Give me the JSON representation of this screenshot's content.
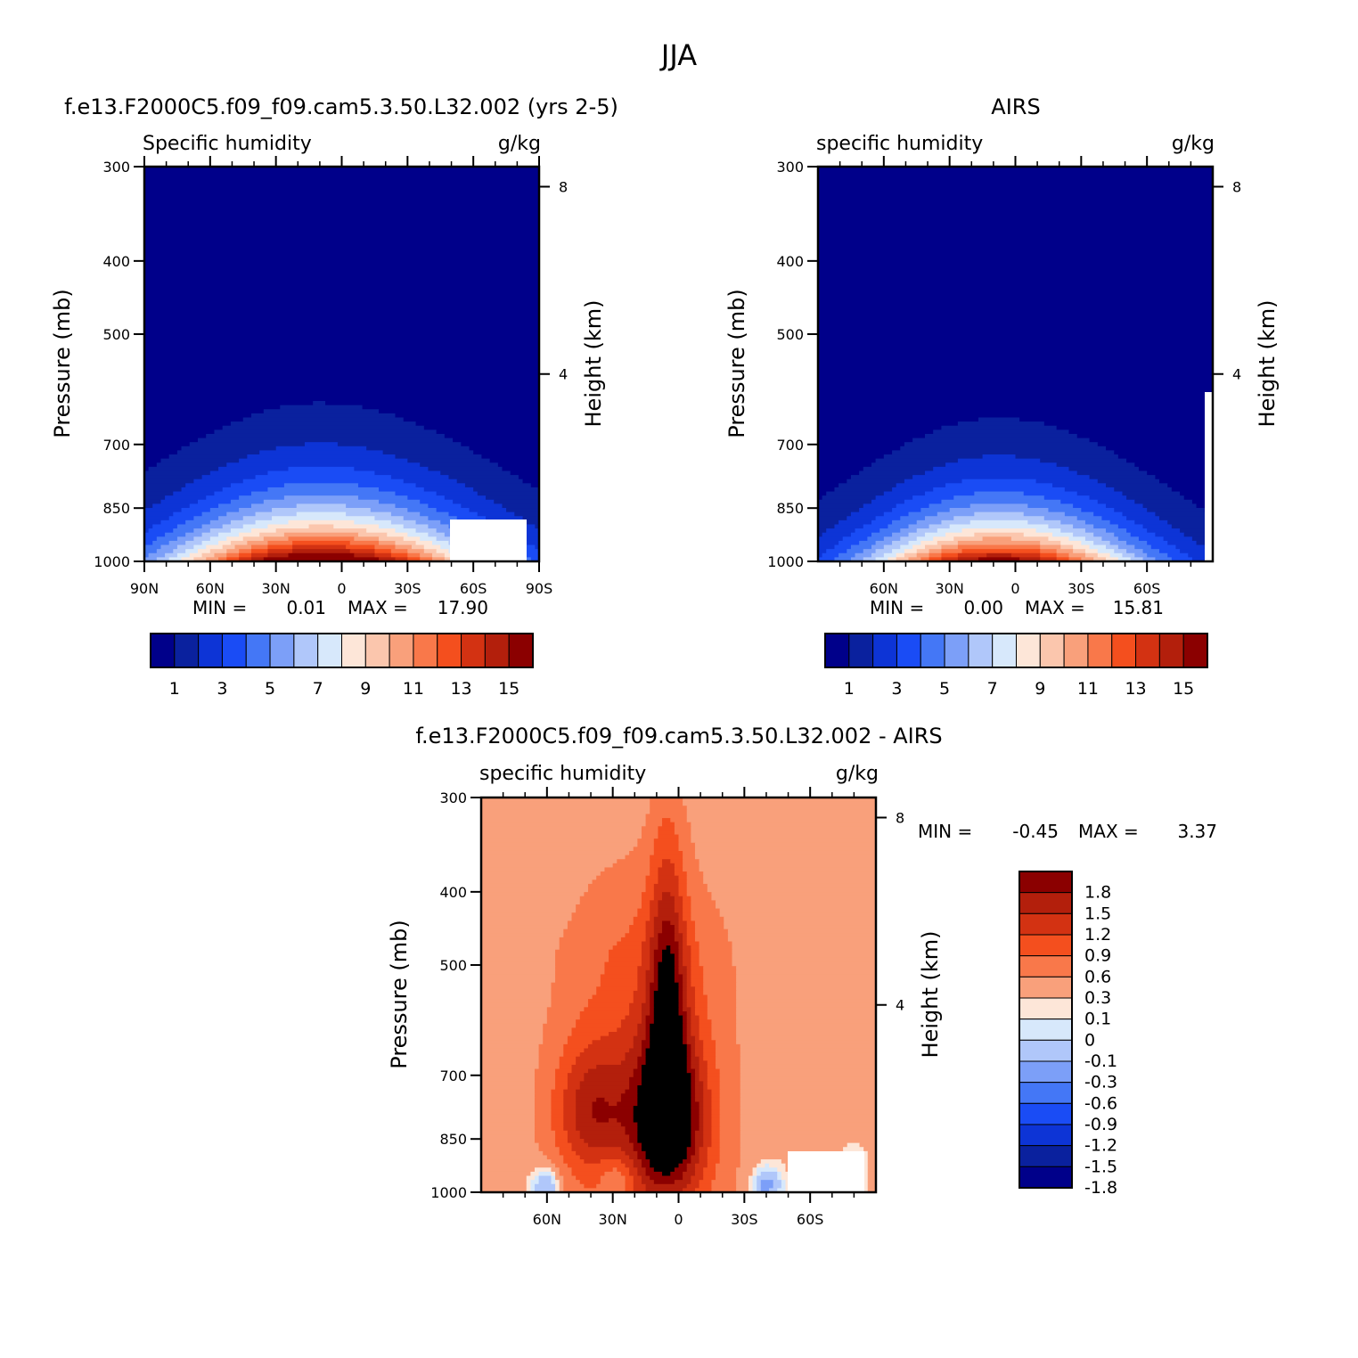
{
  "figure_title": "JJA",
  "colors": {
    "seq": [
      "#00008a",
      "#0a219e",
      "#0d34d6",
      "#1a4cf5",
      "#4477f6",
      "#7c9ff8",
      "#b0c7fa",
      "#d7e8fb",
      "#fde6d8",
      "#fbc6ad",
      "#f9a07b",
      "#f9784a",
      "#f44f1e",
      "#d33212",
      "#b31f0c",
      "#8b0000"
    ],
    "diff": [
      "#00008a",
      "#0a219e",
      "#0d34d6",
      "#1a4cf5",
      "#4477f6",
      "#7c9ff8",
      "#b0c7fa",
      "#d7e8fb",
      "#fde6d8",
      "#f9a07b",
      "#f9784a",
      "#f44f1e",
      "#d33212",
      "#b31f0c",
      "#8b0000"
    ]
  },
  "panels": [
    {
      "title": "f.e13.F2000C5.f09_f09.cam5.3.50.L32.002 (yrs 2-5)",
      "left_label": "Specific humidity",
      "right_label": "g/kg",
      "ylabel": "Pressure (mb)",
      "y2label": "Height (km)",
      "min_label": "MIN =",
      "min_value": "0.01",
      "max_label": "MAX =",
      "max_value": "17.90",
      "colorbar_labels": [
        "1",
        "3",
        "5",
        "7",
        "9",
        "11",
        "13",
        "15"
      ]
    },
    {
      "title": "AIRS",
      "left_label": "specific humidity",
      "right_label": "g/kg",
      "ylabel": "Pressure (mb)",
      "y2label": "Height (km)",
      "min_label": "MIN =",
      "min_value": "0.00",
      "max_label": "MAX =",
      "max_value": "15.81",
      "colorbar_labels": [
        "1",
        "3",
        "5",
        "7",
        "9",
        "11",
        "13",
        "15"
      ]
    },
    {
      "title": "f.e13.F2000C5.f09_f09.cam5.3.50.L32.002 - AIRS",
      "left_label": "specific humidity",
      "right_label": "g/kg",
      "ylabel": "Pressure (mb)",
      "y2label": "Height (km)",
      "min_label": "MIN =",
      "min_value": "-0.45",
      "max_label": "MAX =",
      "max_value": "3.37",
      "colorbar_labels": [
        "1.8",
        "1.5",
        "1.2",
        "0.9",
        "0.6",
        "0.3",
        "0.1",
        "0",
        "-0.1",
        "-0.3",
        "-0.6",
        "-0.9",
        "-1.2",
        "-1.5",
        "-1.8"
      ]
    }
  ],
  "chart_data": [
    {
      "type": "heatmap",
      "title": "f.e13.F2000C5.f09_f09.cam5.3.50.L32.002 (yrs 2-5)",
      "variable": "Specific humidity",
      "units": "g/kg",
      "xlabel": "",
      "ylabel": "Pressure (mb)",
      "y2label": "Height (km)",
      "x_ticks": [
        "90N",
        "60N",
        "30N",
        "0",
        "30S",
        "60S",
        "90S"
      ],
      "x_tick_values": [
        90,
        60,
        30,
        0,
        -30,
        -60,
        -90
      ],
      "xlim": [
        90,
        -90
      ],
      "y_ticks": [
        300,
        400,
        500,
        700,
        850,
        1000
      ],
      "ylim": [
        1000,
        300
      ],
      "y2_ticks": [
        8,
        4
      ],
      "contour_levels": [
        1,
        2,
        3,
        4,
        5,
        6,
        7,
        8,
        9,
        10,
        11,
        12,
        13,
        14,
        15
      ],
      "peak_latitude": 10,
      "min": 0.01,
      "max": 17.9
    },
    {
      "type": "heatmap",
      "title": "AIRS",
      "variable": "specific humidity",
      "units": "g/kg",
      "xlabel": "",
      "ylabel": "Pressure (mb)",
      "y2label": "Height (km)",
      "x_ticks": [
        "60N",
        "30N",
        "0",
        "30S",
        "60S"
      ],
      "x_tick_values": [
        60,
        30,
        0,
        -30,
        -60
      ],
      "xlim": [
        90,
        -90
      ],
      "y_ticks": [
        300,
        400,
        500,
        700,
        850,
        1000
      ],
      "ylim": [
        1000,
        300
      ],
      "y2_ticks": [
        8,
        4
      ],
      "contour_levels": [
        1,
        2,
        3,
        4,
        5,
        6,
        7,
        8,
        9,
        10,
        11,
        12,
        13,
        14,
        15
      ],
      "peak_latitude": 10,
      "min": 0.0,
      "max": 15.81
    },
    {
      "type": "heatmap",
      "title": "f.e13.F2000C5.f09_f09.cam5.3.50.L32.002 - AIRS",
      "variable": "specific humidity",
      "units": "g/kg",
      "xlabel": "",
      "ylabel": "Pressure (mb)",
      "y2label": "Height (km)",
      "x_ticks": [
        "60N",
        "30N",
        "0",
        "30S",
        "60S"
      ],
      "x_tick_values": [
        60,
        30,
        0,
        -30,
        -60
      ],
      "xlim": [
        90,
        -90
      ],
      "y_ticks": [
        300,
        400,
        500,
        700,
        850,
        1000
      ],
      "ylim": [
        1000,
        300
      ],
      "y2_ticks": [
        8,
        4
      ],
      "contour_levels": [
        -1.8,
        -1.5,
        -1.2,
        -0.9,
        -0.6,
        -0.3,
        -0.1,
        0,
        0.1,
        0.3,
        0.6,
        0.9,
        1.2,
        1.5,
        1.8
      ],
      "min": -0.45,
      "max": 3.37
    }
  ]
}
